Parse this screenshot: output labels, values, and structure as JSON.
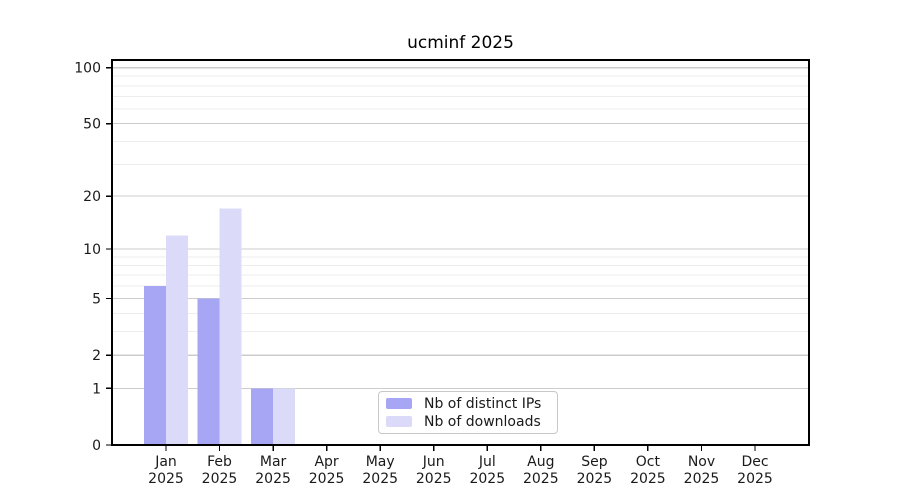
{
  "page": {
    "background": "#ffffff"
  },
  "chart_data": {
    "type": "bar",
    "title": "ucminf 2025",
    "categories": [
      "Jan",
      "Feb",
      "Mar",
      "Apr",
      "May",
      "Jun",
      "Jul",
      "Aug",
      "Sep",
      "Oct",
      "Nov",
      "Dec"
    ],
    "category_year": "2025",
    "series": [
      {
        "name": "Nb of distinct IPs",
        "color": "#a6a6f4",
        "values": [
          6,
          5,
          1,
          0,
          0,
          0,
          0,
          0,
          0,
          0,
          0,
          0
        ]
      },
      {
        "name": "Nb of downloads",
        "color": "#dbdbf9",
        "values": [
          12,
          17,
          1,
          0,
          0,
          0,
          0,
          0,
          0,
          0,
          0,
          0
        ]
      }
    ],
    "xlabel": "",
    "ylabel": "",
    "yscale": "log1p",
    "ylim": [
      0,
      110
    ],
    "yticks": [
      0,
      1,
      2,
      5,
      10,
      20,
      50,
      100
    ],
    "yticks_minor": [
      3,
      4,
      6,
      7,
      8,
      9,
      30,
      40,
      60,
      70,
      80,
      90
    ],
    "grid": true,
    "grid_major_color": "#cccccc",
    "grid_minor_color": "#ededed",
    "axis_color": "#000000",
    "legend_position": "lower center"
  }
}
